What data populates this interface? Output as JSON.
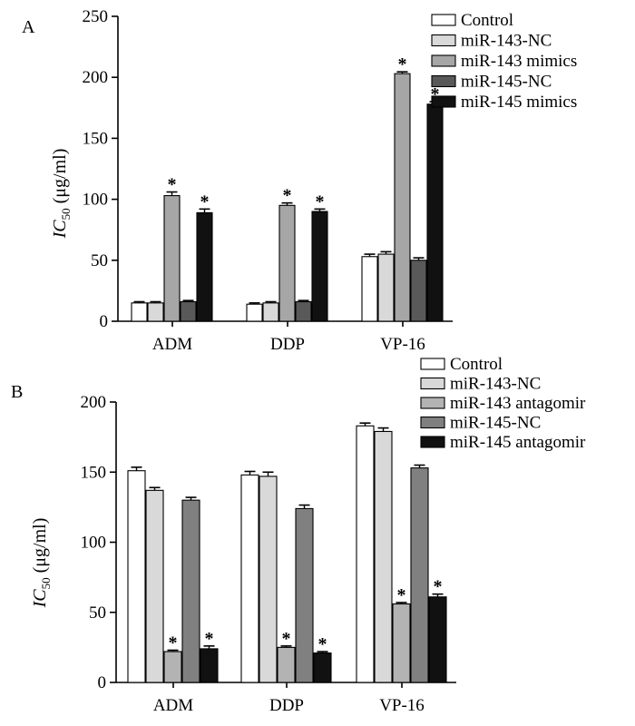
{
  "chart_data": [
    {
      "type": "bar",
      "panel_label": "A",
      "ylabel_main": "IC",
      "ylabel_sub": "50",
      "ylabel_unit": "(μg/ml)",
      "ylim": [
        0,
        250
      ],
      "yticks": [
        0,
        50,
        100,
        150,
        200,
        250
      ],
      "categories": [
        "ADM",
        "DDP",
        "VP-16"
      ],
      "significance_marker": "*",
      "series": [
        {
          "name": "Control",
          "color": "#ffffff",
          "values": [
            15,
            14,
            53
          ],
          "errors": [
            1,
            1,
            2
          ],
          "significant": [
            false,
            false,
            false
          ]
        },
        {
          "name": "miR-143-NC",
          "color": "#d9d9d9",
          "values": [
            15,
            15,
            55
          ],
          "errors": [
            1,
            1,
            2
          ],
          "significant": [
            false,
            false,
            false
          ]
        },
        {
          "name": "miR-143 mimics",
          "color": "#a6a6a6",
          "values": [
            103,
            95,
            203
          ],
          "errors": [
            3,
            2,
            1.5
          ],
          "significant": [
            true,
            true,
            true
          ]
        },
        {
          "name": "miR-145-NC",
          "color": "#595959",
          "values": [
            16,
            16,
            50
          ],
          "errors": [
            1,
            1,
            2
          ],
          "significant": [
            false,
            false,
            false
          ]
        },
        {
          "name": "miR-145 mimics",
          "color": "#111111",
          "values": [
            89,
            90,
            178
          ],
          "errors": [
            3,
            2,
            2
          ],
          "significant": [
            true,
            true,
            true
          ]
        }
      ]
    },
    {
      "type": "bar",
      "panel_label": "B",
      "ylabel_main": "IC",
      "ylabel_sub": "50",
      "ylabel_unit": "(μg/ml)",
      "ylim": [
        0,
        200
      ],
      "yticks": [
        0,
        50,
        100,
        150,
        200
      ],
      "categories": [
        "ADM",
        "DDP",
        "VP-16"
      ],
      "significance_marker": "*",
      "series": [
        {
          "name": "Control",
          "color": "#ffffff",
          "values": [
            151,
            148,
            183
          ],
          "errors": [
            2.5,
            2.5,
            2
          ],
          "significant": [
            false,
            false,
            false
          ]
        },
        {
          "name": "miR-143-NC",
          "color": "#d9d9d9",
          "values": [
            137,
            147,
            179
          ],
          "errors": [
            2,
            3,
            2.5
          ],
          "significant": [
            false,
            false,
            false
          ]
        },
        {
          "name": "miR-143 antagomir",
          "color": "#b3b3b3",
          "values": [
            22,
            25,
            56
          ],
          "errors": [
            1,
            1,
            1
          ],
          "significant": [
            true,
            true,
            true
          ]
        },
        {
          "name": "miR-145-NC",
          "color": "#808080",
          "values": [
            130,
            124,
            153
          ],
          "errors": [
            2,
            2.5,
            2
          ],
          "significant": [
            false,
            false,
            false
          ]
        },
        {
          "name": "miR-145 antagomir",
          "color": "#111111",
          "values": [
            24,
            21,
            61
          ],
          "errors": [
            2,
            1,
            2
          ],
          "significant": [
            true,
            true,
            true
          ]
        }
      ]
    }
  ]
}
